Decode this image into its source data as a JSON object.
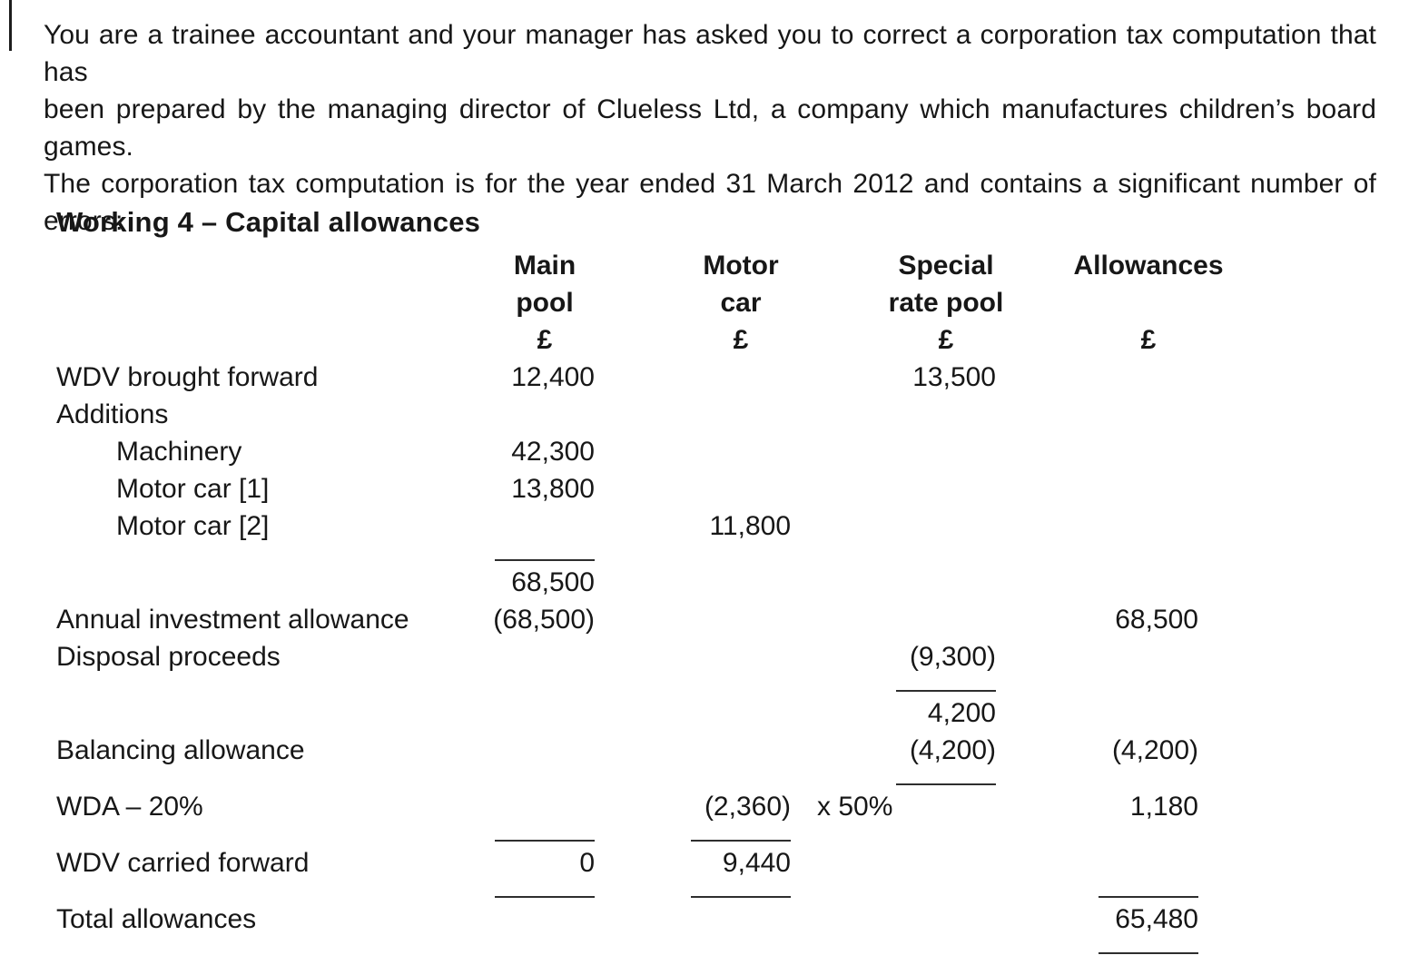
{
  "intro": {
    "lines": [
      "You are a trainee accountant and your manager has asked you to correct a corporation tax computation that has",
      "been prepared by the managing director of Clueless Ltd, a company which manufactures children’s board games.",
      "The corporation tax computation is for the year ended 31 March 2012 and contains a significant number of",
      "errors:"
    ]
  },
  "heading": "Working 4 – Capital allowances",
  "table": {
    "header": {
      "r1": {
        "main": "Main",
        "motor": "Motor",
        "special": "Special",
        "allowances": "Allowances"
      },
      "r2": {
        "main": "pool",
        "motor": "car",
        "special": "rate pool",
        "allowances": ""
      },
      "r3": {
        "main": "£",
        "motor": "£",
        "special": "£",
        "allowances": "£"
      }
    },
    "rows": [
      {
        "label": "WDV brought forward",
        "main": "12,400",
        "special": "13,500"
      },
      {
        "label": "Additions"
      },
      {
        "label": "Machinery",
        "main": "42,300"
      },
      {
        "label": "Motor car [1]",
        "main": "13,800"
      },
      {
        "label": "Motor car [2]",
        "motor": "11,800"
      },
      {
        "label": "",
        "main": "68,500"
      },
      {
        "label": "Annual investment allowance",
        "main": "(68,500)",
        "allowances": "68,500"
      },
      {
        "label": "Disposal proceeds",
        "special": "(9,300)"
      },
      {
        "label": "",
        "special": "4,200"
      },
      {
        "label": "Balancing allowance",
        "special": "(4,200)",
        "allowances": "(4,200)"
      },
      {
        "label": "WDA – 20%",
        "motor": "(2,360)",
        "note": "x 50%",
        "allowances": "1,180"
      },
      {
        "label": "WDV carried forward",
        "main": "0",
        "motor": "9,440"
      },
      {
        "label": "Total allowances",
        "allowances": "65,480"
      }
    ]
  }
}
